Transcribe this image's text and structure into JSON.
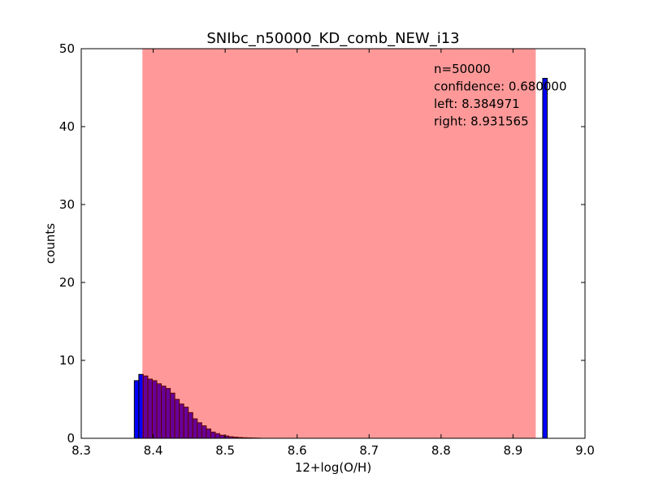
{
  "chart_data": {
    "type": "bar",
    "title": "SNIbc_n50000_KD_comb_NEW_i13",
    "xlabel": "12+log(O/H)",
    "ylabel": "counts",
    "xlim": [
      8.3,
      9.0
    ],
    "ylim": [
      0,
      50
    ],
    "xticks": [
      "8.3",
      "8.4",
      "8.5",
      "8.6",
      "8.7",
      "8.8",
      "8.9",
      "9.0"
    ],
    "yticks": [
      "0",
      "10",
      "20",
      "30",
      "40",
      "50"
    ],
    "grid": false,
    "bin_width": 0.00625,
    "bin_left_edges": [
      8.37375,
      8.38,
      8.38625,
      8.3925,
      8.39875,
      8.405,
      8.41125,
      8.4175,
      8.42375,
      8.43,
      8.43625,
      8.4425,
      8.44875,
      8.455,
      8.46125,
      8.4675,
      8.47375,
      8.48,
      8.48625,
      8.4925,
      8.49875,
      8.505,
      8.51125,
      8.5175,
      8.52375,
      8.53,
      8.53625,
      8.5425,
      8.94125
    ],
    "values": [
      7.4,
      8.2,
      8.0,
      7.6,
      7.4,
      7.0,
      6.7,
      6.4,
      5.8,
      5.0,
      4.4,
      4.0,
      3.3,
      2.5,
      2.0,
      1.6,
      1.2,
      0.8,
      0.6,
      0.4,
      0.3,
      0.2,
      0.15,
      0.1,
      0.07,
      0.05,
      0.03,
      0.02,
      46.2
    ],
    "bar_color": "#0000ff",
    "bar_edge_color": "#000000",
    "confidence_interval": {
      "left": 8.384971,
      "right": 8.931565,
      "color": "#ff0000",
      "opacity": 0.4
    },
    "annotations": [
      "n=50000",
      "confidence: 0.680000",
      "left: 8.384971",
      "right: 8.931565"
    ]
  }
}
